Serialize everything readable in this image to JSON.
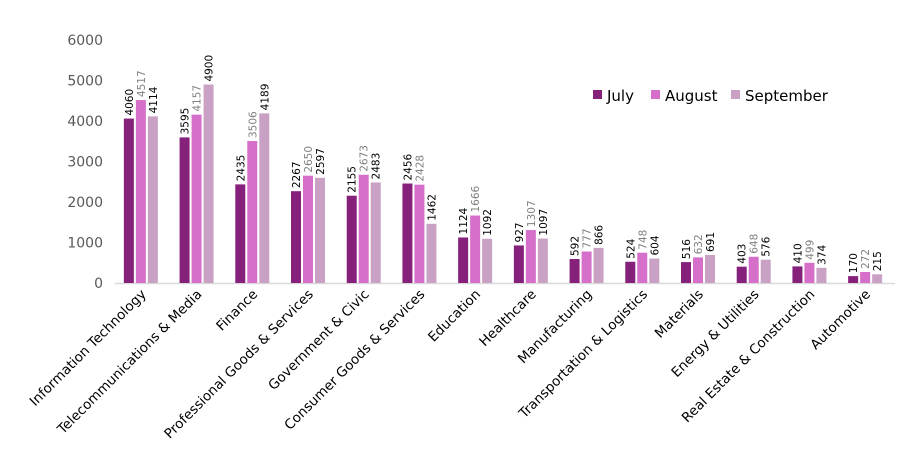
{
  "chart_data": {
    "type": "bar",
    "title": "",
    "xlabel": "",
    "ylabel": "",
    "ylim": [
      0,
      6000
    ],
    "yticks": [
      0,
      1000,
      2000,
      3000,
      4000,
      5000,
      6000
    ],
    "grid": false,
    "legend_position": "top-right",
    "categories": [
      "Information Technology",
      "Telecommunications & Media",
      "Finance",
      "Professional Goods & Services",
      "Government & Civic",
      "Consumer Goods & Services",
      "Education",
      "Healthcare",
      "Manufacturing",
      "Transportation & Logistics",
      "Materials",
      "Energy & Utilities",
      "Real Estate & Construction",
      "Automotive"
    ],
    "series": [
      {
        "name": "July",
        "color": "#85217a",
        "label_color": "#000000",
        "values": [
          4060,
          3595,
          2435,
          2267,
          2155,
          2456,
          1124,
          927,
          592,
          524,
          516,
          403,
          410,
          170
        ]
      },
      {
        "name": "August",
        "color": "#d66fc9",
        "label_color": "#808080",
        "values": [
          4517,
          4157,
          3506,
          2650,
          2673,
          2428,
          1666,
          1307,
          777,
          748,
          632,
          648,
          499,
          272
        ]
      },
      {
        "name": "September",
        "color": "#c9a1c4",
        "label_color": "#000000",
        "values": [
          4114,
          4900,
          4189,
          2597,
          2483,
          1462,
          1092,
          1097,
          866,
          604,
          691,
          576,
          374,
          215
        ]
      }
    ]
  }
}
